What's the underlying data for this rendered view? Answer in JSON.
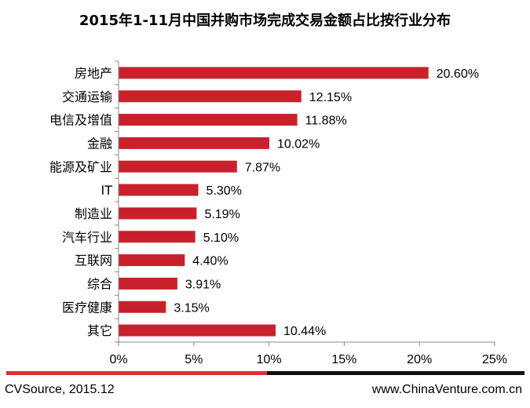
{
  "chart_data": {
    "type": "bar",
    "orientation": "horizontal",
    "title": "2015年1-11月中国并购市场完成交易金额占比按行业分布",
    "categories": [
      "房地产",
      "交通运输",
      "电信及增值",
      "金融",
      "能源及矿业",
      "IT",
      "制造业",
      "汽车行业",
      "互联网",
      "综合",
      "医疗健康",
      "其它"
    ],
    "values": [
      20.6,
      12.15,
      11.88,
      10.02,
      7.87,
      5.3,
      5.19,
      5.1,
      4.4,
      3.91,
      3.15,
      10.44
    ],
    "data_labels": [
      "20.60%",
      "12.15%",
      "11.88%",
      "10.02%",
      "7.87%",
      "5.30%",
      "5.19%",
      "5.10%",
      "4.40%",
      "3.91%",
      "3.15%",
      "10.44%"
    ],
    "x_ticks": [
      "0%",
      "5%",
      "10%",
      "15%",
      "20%",
      "25%"
    ],
    "xlim": [
      0,
      25
    ],
    "xlabel": "",
    "ylabel": "",
    "grid": false,
    "bar_color": "#c9212b"
  },
  "footer": {
    "source": "CVSource, 2015.12",
    "site": "www.ChinaVenture.com.cn",
    "rule_colors": [
      "#e03033",
      "#111111"
    ]
  }
}
